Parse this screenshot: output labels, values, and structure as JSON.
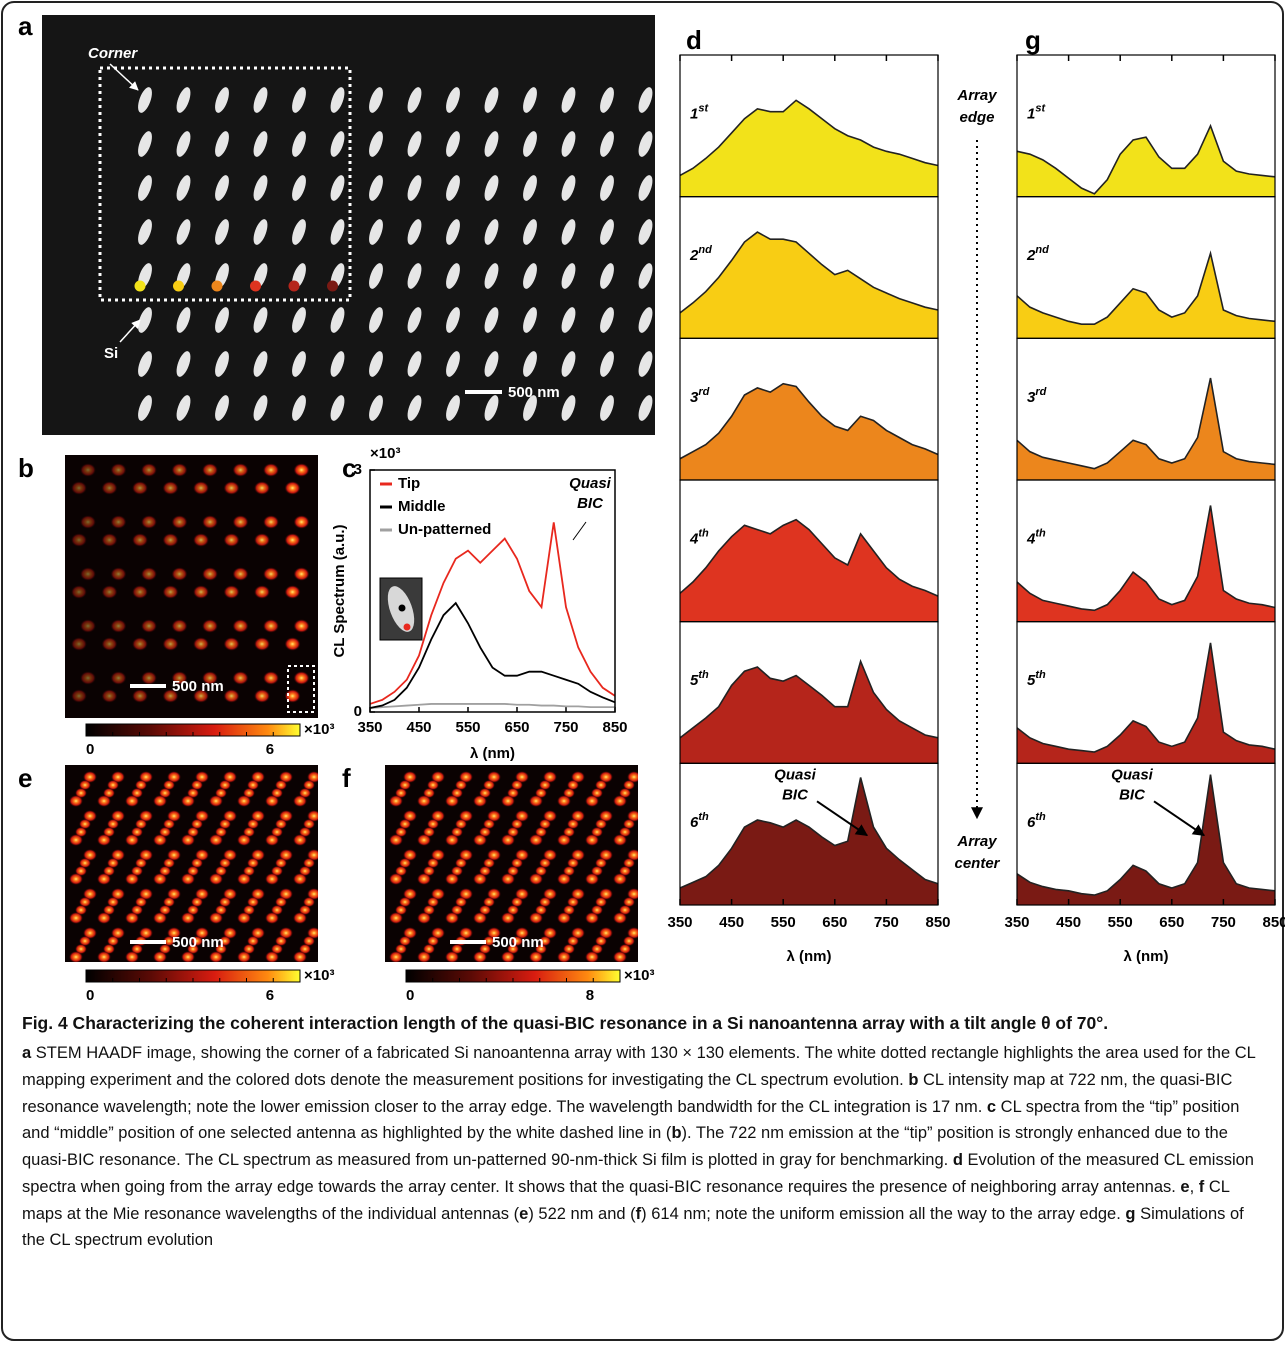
{
  "figure": {
    "panel_labels": [
      "a",
      "b",
      "c",
      "d",
      "e",
      "f",
      "g"
    ],
    "a": {
      "corner": "Corner",
      "si": "Si",
      "scale_bar": "500 nm"
    },
    "b": {
      "scale_bar": "500 nm",
      "colorbar": {
        "min": 0,
        "max": 6,
        "unit": "×10³"
      }
    },
    "e": {
      "scale_bar": "500 nm",
      "colorbar": {
        "min": 0,
        "max": 6,
        "unit": "×10³"
      }
    },
    "f": {
      "scale_bar": "500 nm",
      "colorbar": {
        "min": 0,
        "max": 8,
        "unit": "×10³"
      }
    },
    "array_edge": [
      "Array",
      "edge"
    ],
    "array_center": [
      "Array",
      "center"
    ]
  },
  "chart_data": [
    {
      "type": "line",
      "x": [
        350,
        375,
        400,
        425,
        450,
        475,
        500,
        525,
        550,
        575,
        600,
        625,
        650,
        675,
        700,
        725,
        750,
        775,
        800,
        825,
        850
      ],
      "series": [
        {
          "name": "Tip",
          "color": "#e8281e",
          "values": [
            0.1,
            0.15,
            0.25,
            0.4,
            0.7,
            1.2,
            1.6,
            1.9,
            2.0,
            1.85,
            2.0,
            2.15,
            1.9,
            1.5,
            1.3,
            2.35,
            1.3,
            0.8,
            0.5,
            0.3,
            0.2
          ]
        },
        {
          "name": "Middle",
          "color": "#000000",
          "values": [
            0.05,
            0.08,
            0.15,
            0.3,
            0.55,
            0.9,
            1.2,
            1.35,
            1.1,
            0.8,
            0.55,
            0.45,
            0.45,
            0.5,
            0.5,
            0.45,
            0.4,
            0.35,
            0.25,
            0.18,
            0.12
          ]
        },
        {
          "name": "Un-patterned",
          "color": "#a0a0a0",
          "values": [
            0.05,
            0.06,
            0.07,
            0.08,
            0.09,
            0.1,
            0.1,
            0.1,
            0.1,
            0.1,
            0.1,
            0.1,
            0.09,
            0.09,
            0.08,
            0.08,
            0.07,
            0.07,
            0.06,
            0.06,
            0.06
          ]
        }
      ],
      "xlim": [
        350,
        850
      ],
      "ylim": [
        0,
        3
      ],
      "xticks": [
        350,
        450,
        550,
        650,
        750,
        850
      ],
      "yticks": [
        0,
        3
      ],
      "y_multiplier": "×10³",
      "xlabel": "λ (nm)",
      "ylabel": "CL Spectrum (a.u.)",
      "annotation": [
        "Quasi",
        "BIC"
      ],
      "legend": "upper left"
    },
    {
      "type": "area",
      "x": [
        350,
        375,
        400,
        425,
        450,
        475,
        500,
        525,
        550,
        575,
        600,
        625,
        650,
        675,
        700,
        725,
        750,
        775,
        800,
        825,
        850
      ],
      "xlim": [
        350,
        850
      ],
      "ylim": [
        0,
        1
      ],
      "xticks": [
        350,
        450,
        550,
        650,
        750,
        850
      ],
      "xlabel": "λ (nm)",
      "annotation": [
        "Quasi",
        "BIC"
      ],
      "series": [
        {
          "label": [
            "1",
            "st"
          ],
          "color": "#f2e21a",
          "values": [
            0.15,
            0.2,
            0.27,
            0.35,
            0.45,
            0.55,
            0.62,
            0.6,
            0.6,
            0.68,
            0.62,
            0.55,
            0.48,
            0.43,
            0.4,
            0.35,
            0.32,
            0.3,
            0.27,
            0.24,
            0.22
          ]
        },
        {
          "label": [
            "2",
            "nd"
          ],
          "color": "#f8cd14",
          "values": [
            0.18,
            0.25,
            0.33,
            0.43,
            0.55,
            0.68,
            0.75,
            0.7,
            0.7,
            0.68,
            0.6,
            0.52,
            0.45,
            0.48,
            0.42,
            0.36,
            0.32,
            0.28,
            0.25,
            0.22,
            0.2
          ]
        },
        {
          "label": [
            "3",
            "rd"
          ],
          "color": "#ec861c",
          "values": [
            0.15,
            0.2,
            0.25,
            0.33,
            0.45,
            0.6,
            0.65,
            0.62,
            0.68,
            0.66,
            0.55,
            0.45,
            0.38,
            0.35,
            0.45,
            0.42,
            0.35,
            0.3,
            0.25,
            0.22,
            0.18
          ]
        },
        {
          "label": [
            "4",
            "th"
          ],
          "color": "#de3420",
          "values": [
            0.2,
            0.28,
            0.38,
            0.5,
            0.6,
            0.68,
            0.65,
            0.62,
            0.68,
            0.72,
            0.65,
            0.55,
            0.45,
            0.4,
            0.62,
            0.5,
            0.38,
            0.3,
            0.25,
            0.22,
            0.18
          ]
        },
        {
          "label": [
            "5",
            "th"
          ],
          "color": "#b5251b",
          "values": [
            0.18,
            0.25,
            0.32,
            0.4,
            0.55,
            0.65,
            0.68,
            0.6,
            0.58,
            0.62,
            0.55,
            0.48,
            0.4,
            0.4,
            0.72,
            0.5,
            0.38,
            0.3,
            0.25,
            0.2,
            0.18
          ]
        },
        {
          "label": [
            "6",
            "th"
          ],
          "color": "#7a1a14",
          "values": [
            0.12,
            0.16,
            0.2,
            0.28,
            0.4,
            0.55,
            0.6,
            0.58,
            0.55,
            0.6,
            0.55,
            0.48,
            0.42,
            0.45,
            0.9,
            0.55,
            0.4,
            0.32,
            0.25,
            0.18,
            0.15
          ]
        }
      ]
    },
    {
      "type": "area",
      "x": [
        350,
        375,
        400,
        425,
        450,
        475,
        500,
        525,
        550,
        575,
        600,
        625,
        650,
        675,
        700,
        725,
        750,
        775,
        800,
        825,
        850
      ],
      "xlim": [
        350,
        850
      ],
      "ylim": [
        0,
        1
      ],
      "xticks": [
        350,
        450,
        550,
        650,
        750,
        850
      ],
      "xlabel": "λ (nm)",
      "annotation": [
        "Quasi",
        "BIC"
      ],
      "series": [
        {
          "label": [
            "1",
            "st"
          ],
          "color": "#f2e21a",
          "values": [
            0.32,
            0.3,
            0.26,
            0.2,
            0.13,
            0.06,
            0.02,
            0.12,
            0.3,
            0.4,
            0.42,
            0.28,
            0.2,
            0.2,
            0.3,
            0.5,
            0.25,
            0.18,
            0.16,
            0.15,
            0.14
          ]
        },
        {
          "label": [
            "2",
            "nd"
          ],
          "color": "#f8cd14",
          "values": [
            0.3,
            0.22,
            0.18,
            0.15,
            0.12,
            0.1,
            0.1,
            0.15,
            0.25,
            0.35,
            0.32,
            0.2,
            0.15,
            0.18,
            0.3,
            0.6,
            0.2,
            0.16,
            0.14,
            0.13,
            0.12
          ]
        },
        {
          "label": [
            "3",
            "rd"
          ],
          "color": "#ec861c",
          "values": [
            0.28,
            0.2,
            0.16,
            0.14,
            0.12,
            0.1,
            0.08,
            0.12,
            0.2,
            0.28,
            0.25,
            0.15,
            0.12,
            0.15,
            0.3,
            0.72,
            0.2,
            0.15,
            0.13,
            0.12,
            0.11
          ]
        },
        {
          "label": [
            "4",
            "th"
          ],
          "color": "#de3420",
          "values": [
            0.28,
            0.2,
            0.15,
            0.13,
            0.11,
            0.09,
            0.08,
            0.12,
            0.22,
            0.35,
            0.28,
            0.16,
            0.12,
            0.15,
            0.32,
            0.82,
            0.22,
            0.16,
            0.13,
            0.12,
            0.1
          ]
        },
        {
          "label": [
            "5",
            "th"
          ],
          "color": "#b5251b",
          "values": [
            0.25,
            0.18,
            0.14,
            0.12,
            0.1,
            0.09,
            0.08,
            0.12,
            0.2,
            0.3,
            0.26,
            0.15,
            0.12,
            0.15,
            0.32,
            0.85,
            0.22,
            0.16,
            0.13,
            0.12,
            0.1
          ]
        },
        {
          "label": [
            "6",
            "th"
          ],
          "color": "#7a1a14",
          "values": [
            0.22,
            0.16,
            0.13,
            0.11,
            0.1,
            0.08,
            0.07,
            0.1,
            0.18,
            0.28,
            0.24,
            0.15,
            0.12,
            0.15,
            0.3,
            0.92,
            0.3,
            0.15,
            0.12,
            0.11,
            0.1
          ]
        }
      ]
    }
  ],
  "caption": {
    "title": "Fig. 4 Characterizing the coherent interaction length of the quasi-BIC resonance in a Si nanoantenna array with a tilt angle θ of 70°.",
    "body": [
      {
        "text": "a",
        "bold": true
      },
      {
        "text": " STEM HAADF image, showing the corner of a fabricated Si nanoantenna array with 130 × 130 elements. The white dotted rectangle highlights the area used for the CL mapping experiment and the colored dots denote the measurement positions for investigating the CL spectrum evolution. ",
        "bold": false
      },
      {
        "text": "b",
        "bold": true
      },
      {
        "text": " CL intensity map at 722 nm, the quasi-BIC resonance wavelength; note the lower emission closer to the array edge. The wavelength bandwidth for the CL integration is 17 nm. ",
        "bold": false
      },
      {
        "text": "c",
        "bold": true
      },
      {
        "text": " CL spectra from the “tip” position and “middle” position of one selected antenna as highlighted by the white dashed line in (",
        "bold": false
      },
      {
        "text": "b",
        "bold": true
      },
      {
        "text": "). The 722 nm emission at the “tip” position is strongly enhanced due to the quasi-BIC resonance. The CL spectrum as measured from un-patterned 90-nm-thick Si film is plotted in gray for benchmarking. ",
        "bold": false
      },
      {
        "text": "d",
        "bold": true
      },
      {
        "text": " Evolution of the measured CL emission spectra when going from the array edge towards the array center. It shows that the quasi-BIC resonance requires the presence of neighboring array antennas. ",
        "bold": false
      },
      {
        "text": "e",
        "bold": true
      },
      {
        "text": ", ",
        "bold": false
      },
      {
        "text": "f",
        "bold": true
      },
      {
        "text": " CL maps at the Mie resonance wavelengths of the individual antennas (",
        "bold": false
      },
      {
        "text": "e",
        "bold": true
      },
      {
        "text": ") 522 nm and (",
        "bold": false
      },
      {
        "text": "f",
        "bold": true
      },
      {
        "text": ") 614 nm; note the uniform emission all the way to the array edge. ",
        "bold": false
      },
      {
        "text": "g",
        "bold": true
      },
      {
        "text": " Simulations of the CL spectrum evolution",
        "bold": false
      }
    ]
  }
}
